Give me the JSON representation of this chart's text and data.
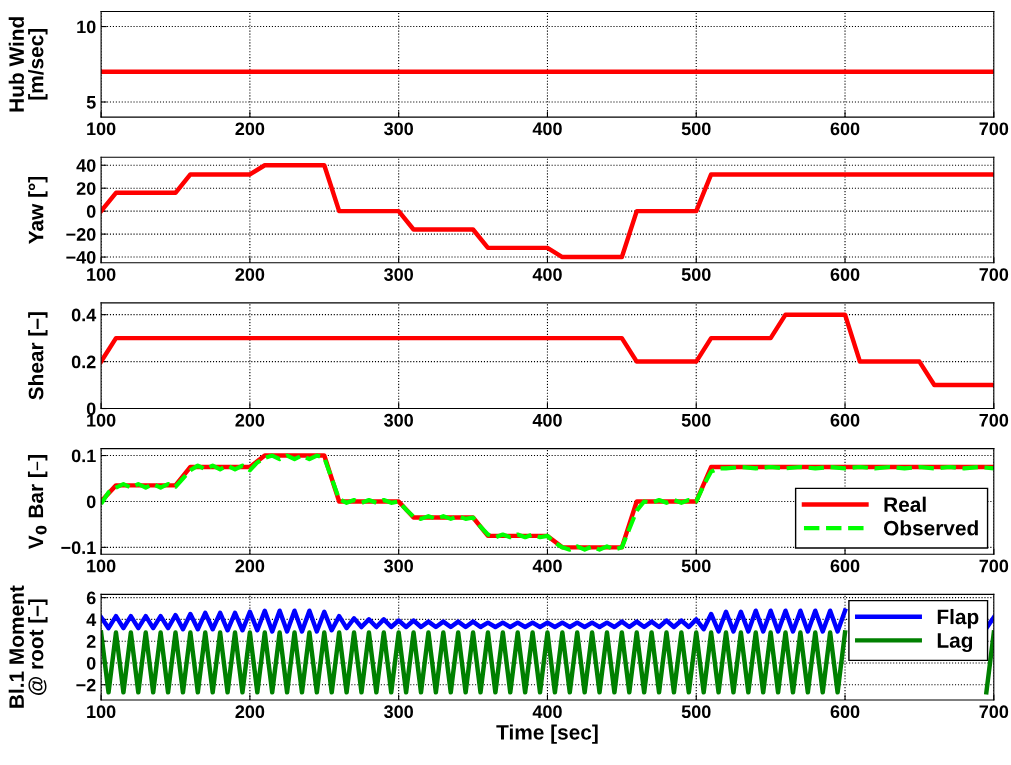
{
  "chart_data": [
    {
      "type": "line",
      "ylabel": "Hub Wind\n[m/sec]",
      "xlim": [
        100,
        700
      ],
      "xticks": [
        100,
        200,
        300,
        400,
        500,
        600,
        700
      ],
      "ylim": [
        4,
        11
      ],
      "yticks": [
        5,
        10
      ],
      "grid": true,
      "legend": false,
      "series": [
        {
          "color": "#ff0000",
          "x": [
            100,
            700
          ],
          "values": [
            7,
            7
          ]
        }
      ]
    },
    {
      "type": "line",
      "ylabel": "Yaw [°]",
      "xlim": [
        100,
        700
      ],
      "xticks": [
        100,
        200,
        300,
        400,
        500,
        600,
        700
      ],
      "ylim": [
        -45,
        47
      ],
      "yticks": [
        {
          "value": -40,
          "label": "−40"
        },
        {
          "value": -20,
          "label": "−20"
        },
        0,
        20,
        40
      ],
      "grid": true,
      "legend": false,
      "series": [
        {
          "color": "#ff0000",
          "x": [
            100,
            110,
            150,
            160,
            200,
            210,
            250,
            260,
            300,
            310,
            350,
            360,
            400,
            410,
            450,
            460,
            500,
            510,
            700
          ],
          "values": [
            0,
            16,
            16,
            32,
            32,
            40,
            40,
            0,
            0,
            -16,
            -16,
            -32,
            -32,
            -40,
            -40,
            0,
            0,
            32,
            32
          ]
        }
      ]
    },
    {
      "type": "line",
      "ylabel": "Shear [–]",
      "xlim": [
        100,
        700
      ],
      "xticks": [
        100,
        200,
        300,
        400,
        500,
        600,
        700
      ],
      "ylim": [
        0,
        0.45
      ],
      "yticks": [
        0,
        0.2,
        0.4
      ],
      "grid": true,
      "legend": false,
      "series": [
        {
          "color": "#ff0000",
          "x": [
            100,
            110,
            450,
            460,
            500,
            510,
            550,
            560,
            600,
            610,
            650,
            660,
            700
          ],
          "values": [
            0.2,
            0.3,
            0.3,
            0.2,
            0.2,
            0.3,
            0.3,
            0.4,
            0.4,
            0.2,
            0.2,
            0.1,
            0.1
          ]
        }
      ]
    },
    {
      "type": "line",
      "ylabel": "V$_{0}$ Bar [–]",
      "xlim": [
        100,
        700
      ],
      "xticks": [
        100,
        200,
        300,
        400,
        500,
        600,
        700
      ],
      "ylim": [
        -0.115,
        0.115
      ],
      "yticks": [
        {
          "value": -0.1,
          "label": "−0.1"
        },
        0,
        0.1
      ],
      "grid": true,
      "legend": "bottom right",
      "series": [
        {
          "name": "Real",
          "color": "#ff0000",
          "line_style": "solid",
          "x": [
            100,
            110,
            150,
            160,
            200,
            210,
            250,
            260,
            300,
            310,
            350,
            360,
            400,
            410,
            450,
            460,
            500,
            510,
            700
          ],
          "values": [
            0,
            0.035,
            0.035,
            0.075,
            0.075,
            0.1,
            0.1,
            0,
            0,
            -0.035,
            -0.035,
            -0.075,
            -0.075,
            -0.1,
            -0.1,
            0,
            0,
            0.075,
            0.075
          ]
        },
        {
          "name": "Observed",
          "color": "#00ff00",
          "line_style": "dashed",
          "x": [
            100,
            105,
            110,
            115,
            120,
            125,
            130,
            135,
            140,
            145,
            150,
            155,
            160,
            165,
            170,
            175,
            180,
            185,
            190,
            195,
            200,
            205,
            210,
            215,
            220,
            225,
            230,
            235,
            240,
            245,
            250,
            255,
            260,
            265,
            270,
            275,
            280,
            285,
            290,
            295,
            300,
            305,
            310,
            315,
            320,
            325,
            330,
            335,
            340,
            345,
            350,
            355,
            360,
            365,
            370,
            375,
            380,
            385,
            390,
            395,
            400,
            405,
            410,
            415,
            420,
            425,
            430,
            435,
            440,
            445,
            450,
            455,
            460,
            465,
            470,
            475,
            480,
            485,
            490,
            495,
            500,
            505,
            510,
            515,
            520,
            530,
            540,
            550,
            560,
            570,
            580,
            590,
            600,
            610,
            620,
            630,
            640,
            650,
            660,
            670,
            680,
            690,
            700
          ],
          "values": [
            -0.005,
            0.02,
            0.03,
            0.038,
            0.03,
            0.038,
            0.03,
            0.038,
            0.03,
            0.038,
            0.032,
            0.05,
            0.068,
            0.078,
            0.07,
            0.078,
            0.07,
            0.078,
            0.07,
            0.078,
            0.068,
            0.085,
            0.095,
            0.1,
            0.092,
            0.1,
            0.092,
            0.1,
            0.092,
            0.1,
            0.095,
            0.05,
            0.005,
            -0.003,
            0.003,
            -0.003,
            0.003,
            -0.003,
            0.003,
            -0.003,
            0,
            -0.018,
            -0.033,
            -0.038,
            -0.032,
            -0.038,
            -0.032,
            -0.038,
            -0.032,
            -0.038,
            -0.035,
            -0.055,
            -0.072,
            -0.078,
            -0.072,
            -0.078,
            -0.072,
            -0.078,
            -0.072,
            -0.078,
            -0.075,
            -0.09,
            -0.1,
            -0.105,
            -0.098,
            -0.105,
            -0.098,
            -0.105,
            -0.098,
            -0.105,
            -0.1,
            -0.06,
            -0.02,
            0,
            -0.003,
            0.003,
            -0.003,
            0.003,
            -0.003,
            0.003,
            0,
            0.035,
            0.065,
            0.072,
            0.072,
            0.075,
            0.072,
            0.075,
            0.072,
            0.075,
            0.072,
            0.075,
            0.072,
            0.075,
            0.072,
            0.075,
            0.072,
            0.075,
            0.072,
            0.075,
            0.072,
            0.075,
            0.072
          ]
        }
      ]
    },
    {
      "type": "line",
      "ylabel": "Bl.1 Moment\n@ root [–]",
      "xlabel": "Time [sec]",
      "xlim": [
        100,
        700
      ],
      "xticks": [
        100,
        200,
        300,
        400,
        500,
        600,
        700
      ],
      "ylim": [
        -3.4,
        6.3
      ],
      "yticks": [
        {
          "value": -2,
          "label": "−2"
        },
        0,
        2,
        4,
        6
      ],
      "grid": true,
      "legend": "top right",
      "series": [
        {
          "name": "Flap",
          "color": "#0000ff",
          "line_style": "solid",
          "x": [
            100,
            105,
            110,
            115,
            120,
            125,
            130,
            135,
            140,
            145,
            150,
            155,
            160,
            165,
            170,
            175,
            180,
            185,
            190,
            195,
            200,
            205,
            210,
            215,
            220,
            225,
            230,
            235,
            240,
            245,
            250,
            255,
            260,
            265,
            270,
            275,
            280,
            285,
            290,
            295,
            300,
            305,
            310,
            315,
            320,
            325,
            330,
            335,
            340,
            345,
            350,
            355,
            360,
            365,
            370,
            375,
            380,
            385,
            390,
            395,
            400,
            405,
            410,
            415,
            420,
            425,
            430,
            435,
            440,
            445,
            450,
            455,
            460,
            465,
            470,
            475,
            480,
            485,
            490,
            495,
            500,
            505,
            510,
            515,
            520,
            525,
            530,
            535,
            540,
            545,
            550,
            555,
            560,
            565,
            570,
            575,
            580,
            585,
            590,
            595,
            600,
            605,
            610,
            615,
            620,
            625,
            630,
            635,
            640,
            645,
            650,
            655,
            660,
            665,
            670,
            675,
            680,
            685,
            690,
            695,
            700
          ],
          "values": [
            4.2,
            3.2,
            4.3,
            3.2,
            4.3,
            3.2,
            4.3,
            3.2,
            4.3,
            3.2,
            4.4,
            3.1,
            4.5,
            3.1,
            4.6,
            3.1,
            4.6,
            3.0,
            4.6,
            3.0,
            4.7,
            3.0,
            4.8,
            2.9,
            4.8,
            2.9,
            4.8,
            2.9,
            4.8,
            2.9,
            4.7,
            3.0,
            4.3,
            3.2,
            4.1,
            3.3,
            4.0,
            3.3,
            4.0,
            3.3,
            3.9,
            3.3,
            3.9,
            3.3,
            3.8,
            3.3,
            3.8,
            3.3,
            3.8,
            3.3,
            3.8,
            3.3,
            3.7,
            3.3,
            3.7,
            3.3,
            3.7,
            3.3,
            3.7,
            3.3,
            3.7,
            3.3,
            3.7,
            3.3,
            3.7,
            3.3,
            3.7,
            3.3,
            3.7,
            3.3,
            3.8,
            3.3,
            3.8,
            3.3,
            3.8,
            3.3,
            3.9,
            3.3,
            3.9,
            3.3,
            4.0,
            3.1,
            4.5,
            2.9,
            4.7,
            2.9,
            4.7,
            2.9,
            4.8,
            2.9,
            4.8,
            2.9,
            4.8,
            2.9,
            4.8,
            2.9,
            4.8,
            2.9,
            4.8,
            2.9,
            4.8,
            null,
            null,
            null,
            null,
            null,
            null,
            null,
            null,
            null,
            null,
            null,
            null,
            null,
            null,
            null,
            null,
            null,
            null,
            3.2,
            4.2
          ]
        },
        {
          "name": "Lag",
          "color": "#008000",
          "line_style": "solid",
          "x": [
            100,
            105,
            110,
            115,
            120,
            125,
            130,
            135,
            140,
            145,
            150,
            155,
            160,
            165,
            170,
            175,
            180,
            185,
            190,
            195,
            200,
            205,
            210,
            215,
            220,
            225,
            230,
            235,
            240,
            245,
            250,
            255,
            260,
            265,
            270,
            275,
            280,
            285,
            290,
            295,
            300,
            305,
            310,
            315,
            320,
            325,
            330,
            335,
            340,
            345,
            350,
            355,
            360,
            365,
            370,
            375,
            380,
            385,
            390,
            395,
            400,
            405,
            410,
            415,
            420,
            425,
            430,
            435,
            440,
            445,
            450,
            455,
            460,
            465,
            470,
            475,
            480,
            485,
            490,
            495,
            500,
            505,
            510,
            515,
            520,
            525,
            530,
            535,
            540,
            545,
            550,
            555,
            560,
            565,
            570,
            575,
            580,
            585,
            590,
            595,
            600,
            605,
            610,
            615,
            620,
            625,
            630,
            635,
            640,
            645,
            650,
            655,
            660,
            665,
            670,
            675,
            680,
            685,
            690,
            695,
            700
          ],
          "values": [
            2.8,
            -2.7,
            2.8,
            -2.7,
            2.8,
            -2.7,
            2.8,
            -2.7,
            2.8,
            -2.7,
            2.8,
            -2.7,
            2.8,
            -2.7,
            2.8,
            -2.7,
            2.8,
            -2.7,
            2.8,
            -2.7,
            2.8,
            -2.7,
            2.8,
            -2.7,
            2.8,
            -2.7,
            2.8,
            -2.7,
            2.8,
            -2.7,
            2.8,
            -2.7,
            2.8,
            -2.7,
            2.8,
            -2.7,
            2.8,
            -2.7,
            2.8,
            -2.7,
            2.8,
            -2.7,
            2.8,
            -2.7,
            2.8,
            -2.7,
            2.8,
            -2.7,
            2.8,
            -2.7,
            2.8,
            -2.7,
            2.8,
            -2.7,
            2.8,
            -2.7,
            2.8,
            -2.7,
            2.8,
            -2.7,
            2.8,
            -2.7,
            2.8,
            -2.7,
            2.8,
            -2.7,
            2.8,
            -2.7,
            2.8,
            -2.7,
            2.8,
            -2.7,
            2.8,
            -2.7,
            2.8,
            -2.7,
            2.8,
            -2.7,
            2.8,
            -2.7,
            2.8,
            -2.7,
            2.8,
            -2.7,
            2.8,
            -2.7,
            2.8,
            -2.7,
            2.8,
            -2.7,
            2.8,
            -2.7,
            2.8,
            -2.7,
            2.8,
            -2.7,
            2.8,
            -2.7,
            2.8,
            -2.7,
            2.8,
            null,
            null,
            null,
            null,
            null,
            null,
            null,
            null,
            null,
            null,
            null,
            null,
            null,
            null,
            null,
            null,
            null,
            null,
            -2.7,
            2.8
          ]
        }
      ]
    }
  ]
}
